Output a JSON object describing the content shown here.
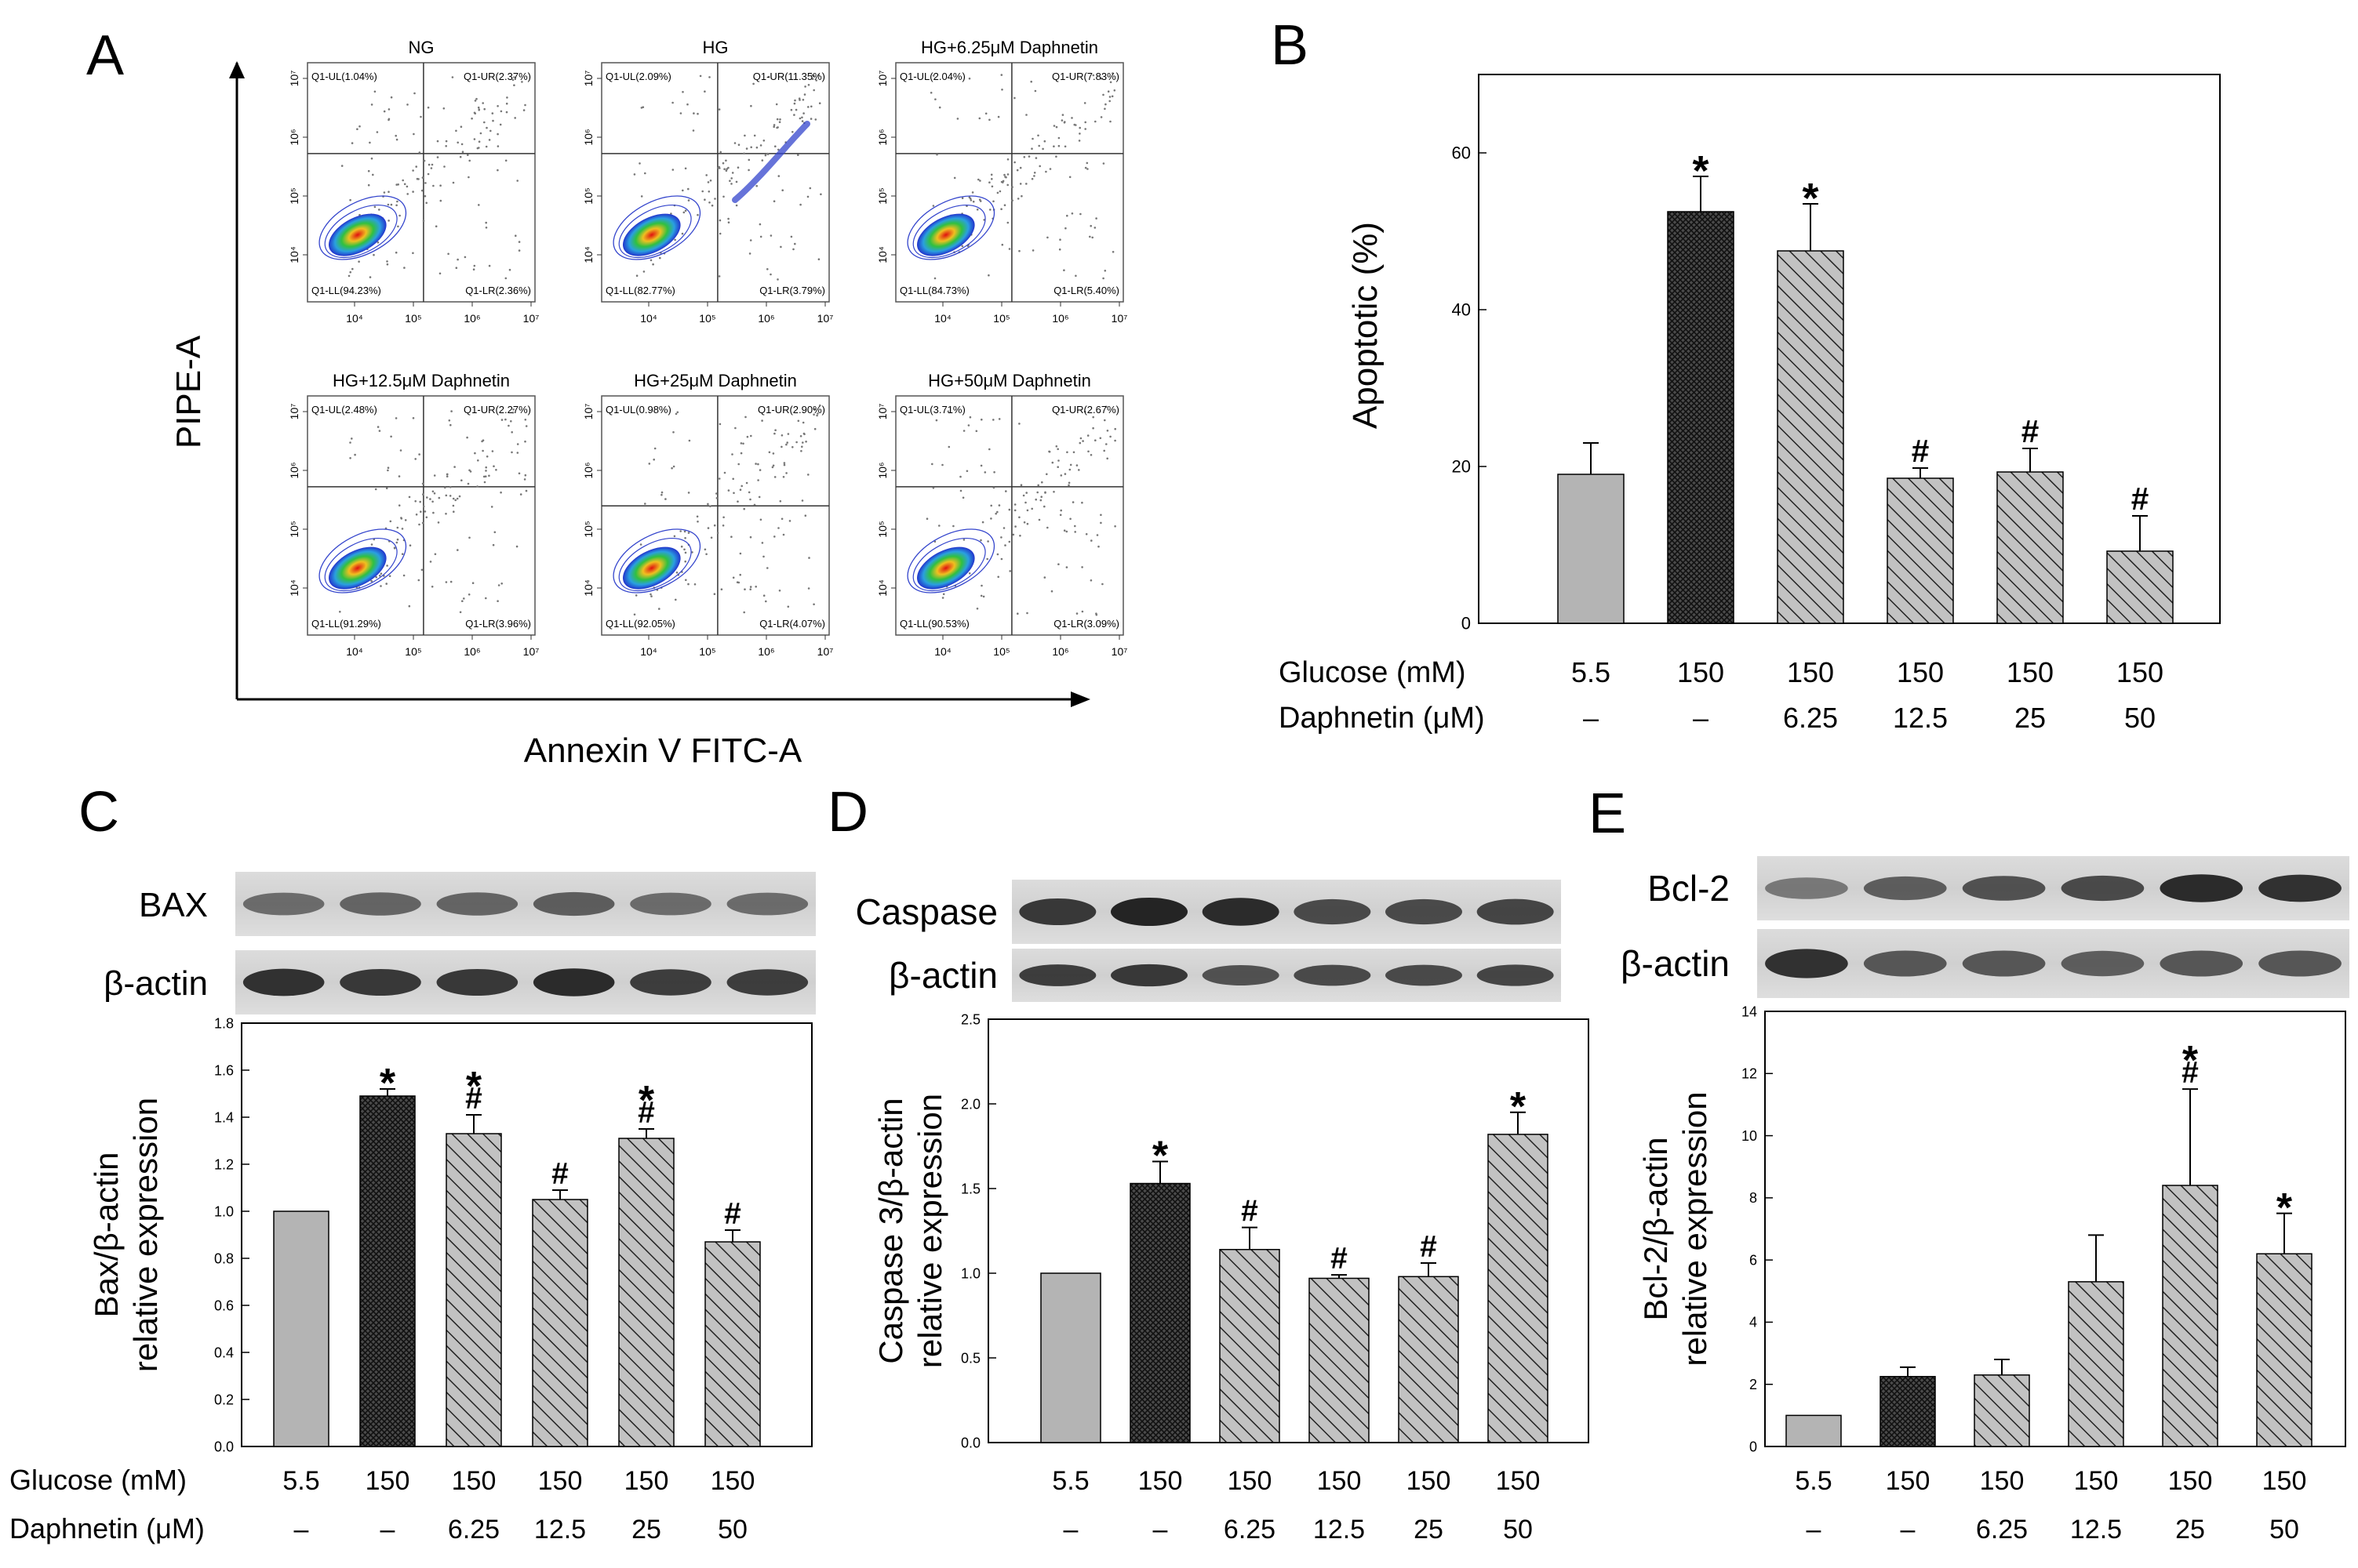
{
  "panel_labels": {
    "A": "A",
    "B": "B",
    "C": "C",
    "D": "D",
    "E": "E"
  },
  "flow": {
    "x_axis_label": "Annexin V FITC-A",
    "y_axis_label": "PIPE-A",
    "tick_labels": [
      "10⁴",
      "10⁵",
      "10⁶",
      "10⁷"
    ],
    "plots": [
      {
        "title": "NG",
        "ul": "Q1-UL(1.04%)",
        "ur": "Q1-UR(2.37%)",
        "ll": "Q1-LL(94.23%)",
        "lr": "Q1-LR(2.36%)"
      },
      {
        "title": "HG",
        "ul": "Q1-UL(2.09%)",
        "ur": "Q1-UR(11.35%)",
        "ll": "Q1-LL(82.77%)",
        "lr": "Q1-LR(3.79%)"
      },
      {
        "title": "HG+6.25μM Daphnetin",
        "ul": "Q1-UL(2.04%)",
        "ur": "Q1-UR(7.83%)",
        "ll": "Q1-LL(84.73%)",
        "lr": "Q1-LR(5.40%)"
      },
      {
        "title": "HG+12.5μM Daphnetin",
        "ul": "Q1-UL(2.48%)",
        "ur": "Q1-UR(2.27%)",
        "ll": "Q1-LL(91.29%)",
        "lr": "Q1-LR(3.96%)"
      },
      {
        "title": "HG+25μM Daphnetin",
        "ul": "Q1-UL(0.98%)",
        "ur": "Q1-UR(2.90%)",
        "ll": "Q1-LL(92.05%)",
        "lr": "Q1-LR(4.07%)"
      },
      {
        "title": "HG+50μM Daphnetin",
        "ul": "Q1-UL(3.71%)",
        "ur": "Q1-UR(2.67%)",
        "ll": "Q1-LL(90.53%)",
        "lr": "Q1-LR(3.09%)"
      }
    ]
  },
  "blots": {
    "C": [
      {
        "label": "BAX"
      },
      {
        "label": "β-actin"
      }
    ],
    "D": [
      {
        "label": "Caspase"
      },
      {
        "label": "β-actin"
      }
    ],
    "E": [
      {
        "label": "Bcl-2"
      },
      {
        "label": "β-actin"
      }
    ]
  },
  "colors": {
    "solid_gray": "#b4b4b4",
    "dark_hatch": "#4a4a4a",
    "hatch_bg": "#c2c2c2",
    "ink": "#000000"
  },
  "chart_data": [
    {
      "id": "B",
      "type": "bar",
      "ylabel": "Apoptotic (%)",
      "ylim": [
        0,
        70
      ],
      "yticks": [
        0,
        20,
        40,
        60
      ],
      "tick_labels": [
        "0",
        "20",
        "40",
        "60"
      ],
      "values": [
        19,
        52.5,
        47.5,
        18.5,
        19.3,
        9.2
      ],
      "errors": [
        4,
        4.5,
        6,
        1.3,
        3,
        4.5
      ],
      "annotations": [
        [],
        [
          "*"
        ],
        [
          "*"
        ],
        [
          "#"
        ],
        [
          "#"
        ],
        [
          "#"
        ]
      ],
      "styles": [
        "solid",
        "crosshatch",
        "hatch",
        "hatch",
        "hatch",
        "hatch"
      ],
      "row1_label": "Glucose (mM)",
      "row1": [
        "5.5",
        "150",
        "150",
        "150",
        "150",
        "150"
      ],
      "row2_label": "Daphnetin (μM)",
      "row2": [
        "–",
        "–",
        "6.25",
        "12.5",
        "25",
        "50"
      ]
    },
    {
      "id": "C",
      "type": "bar",
      "ylabel": [
        "Bax/β-actin",
        "relative expression"
      ],
      "ylim": [
        0,
        1.8
      ],
      "yticks": [
        0,
        0.2,
        0.4,
        0.6,
        0.8,
        1.0,
        1.2,
        1.4,
        1.6,
        1.8
      ],
      "tick_labels": [
        "0.0",
        "0.2",
        "0.4",
        "0.6",
        "0.8",
        "1.0",
        "1.2",
        "1.4",
        "1.6",
        "1.8"
      ],
      "values": [
        1.0,
        1.49,
        1.33,
        1.05,
        1.31,
        0.87
      ],
      "errors": [
        0,
        0.03,
        0.08,
        0.04,
        0.04,
        0.05
      ],
      "annotations": [
        [],
        [
          "*"
        ],
        [
          "*",
          "#"
        ],
        [
          "#"
        ],
        [
          "*",
          "#"
        ],
        [
          "#"
        ]
      ],
      "styles": [
        "solid",
        "crosshatch",
        "hatch",
        "hatch",
        "hatch",
        "hatch"
      ],
      "row1_label": "Glucose (mM)",
      "row1": [
        "5.5",
        "150",
        "150",
        "150",
        "150",
        "150"
      ],
      "row2_label": "Daphnetin (μM)",
      "row2": [
        "–",
        "–",
        "6.25",
        "12.5",
        "25",
        "50"
      ]
    },
    {
      "id": "D",
      "type": "bar",
      "ylabel": [
        "Caspase 3/β-actin",
        "relative expression"
      ],
      "ylim": [
        0,
        2.5
      ],
      "yticks": [
        0,
        0.5,
        1.0,
        1.5,
        2.0,
        2.5
      ],
      "tick_labels": [
        "0.0",
        "0.5",
        "1.0",
        "1.5",
        "2.0",
        "2.5"
      ],
      "values": [
        1.0,
        1.53,
        1.14,
        0.97,
        0.98,
        1.82
      ],
      "errors": [
        0,
        0.13,
        0.13,
        0.02,
        0.08,
        0.13
      ],
      "annotations": [
        [],
        [
          "*"
        ],
        [
          "#"
        ],
        [
          "#"
        ],
        [
          "#"
        ],
        [
          "*"
        ]
      ],
      "styles": [
        "solid",
        "crosshatch",
        "hatch",
        "hatch",
        "hatch",
        "hatch"
      ],
      "row1_label": "",
      "row1": [
        "5.5",
        "150",
        "150",
        "150",
        "150",
        "150"
      ],
      "row2_label": "",
      "row2": [
        "–",
        "–",
        "6.25",
        "12.5",
        "25",
        "50"
      ]
    },
    {
      "id": "E",
      "type": "bar",
      "ylabel": [
        "Bcl-2/β-actin",
        "relative expression"
      ],
      "ylim": [
        0,
        14
      ],
      "yticks": [
        0,
        2,
        4,
        6,
        8,
        10,
        12,
        14
      ],
      "tick_labels": [
        "0",
        "2",
        "4",
        "6",
        "8",
        "10",
        "12",
        "14"
      ],
      "values": [
        1.0,
        2.25,
        2.3,
        5.3,
        8.4,
        6.2
      ],
      "errors": [
        0,
        0.3,
        0.5,
        1.5,
        3.1,
        1.3
      ],
      "annotations": [
        [],
        [],
        [],
        [],
        [
          "*",
          "#"
        ],
        [
          "*"
        ]
      ],
      "styles": [
        "solid",
        "crosshatch",
        "hatch",
        "hatch",
        "hatch",
        "hatch"
      ],
      "row1_label": "",
      "row1": [
        "5.5",
        "150",
        "150",
        "150",
        "150",
        "150"
      ],
      "row2_label": "",
      "row2": [
        "–",
        "–",
        "6.25",
        "12.5",
        "25",
        "50"
      ]
    }
  ]
}
